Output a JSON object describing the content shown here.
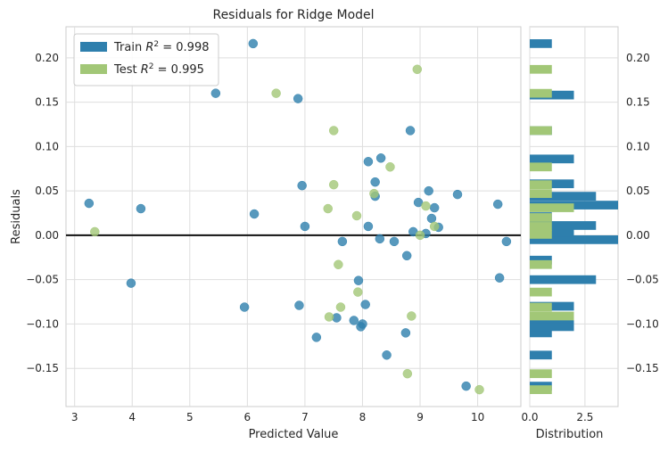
{
  "chart_data": [
    {
      "type": "scatter",
      "title": "Residuals for Ridge Model",
      "xlabel": "Predicted Value",
      "ylabel": "Residuals",
      "xlim": [
        2.85,
        10.75
      ],
      "ylim": [
        -0.193,
        0.235
      ],
      "xticks": [
        3,
        4,
        5,
        6,
        7,
        8,
        9,
        10
      ],
      "yticks": [
        -0.15,
        -0.1,
        -0.05,
        0.0,
        0.05,
        0.1,
        0.15,
        0.2
      ],
      "ytick_labels": [
        "−0.15",
        "−0.10",
        "−0.05",
        "0.00",
        "0.05",
        "0.10",
        "0.15",
        "0.20"
      ],
      "grid": true,
      "legend": "top-left",
      "zero_line": 0.0,
      "series": [
        {
          "name": "Train R² = 0.998",
          "legend_prefix": "Train ",
          "legend_suffix": "= 0.998",
          "color": "#2e7fad",
          "points": [
            [
              3.25,
              0.036
            ],
            [
              3.98,
              -0.054
            ],
            [
              4.15,
              0.03
            ],
            [
              5.45,
              0.16
            ],
            [
              5.95,
              -0.081
            ],
            [
              6.1,
              0.216
            ],
            [
              6.12,
              0.024
            ],
            [
              6.88,
              0.154
            ],
            [
              6.9,
              -0.079
            ],
            [
              6.95,
              0.056
            ],
            [
              7.0,
              0.01
            ],
            [
              7.2,
              -0.115
            ],
            [
              7.55,
              -0.093
            ],
            [
              7.65,
              -0.007
            ],
            [
              7.85,
              -0.096
            ],
            [
              7.93,
              -0.051
            ],
            [
              7.97,
              -0.103
            ],
            [
              8.0,
              -0.1
            ],
            [
              8.05,
              -0.078
            ],
            [
              8.1,
              0.01
            ],
            [
              8.1,
              0.083
            ],
            [
              8.22,
              0.06
            ],
            [
              8.22,
              0.044
            ],
            [
              8.3,
              -0.004
            ],
            [
              8.32,
              0.087
            ],
            [
              8.42,
              -0.135
            ],
            [
              8.55,
              -0.007
            ],
            [
              8.75,
              -0.11
            ],
            [
              8.77,
              -0.023
            ],
            [
              8.83,
              0.118
            ],
            [
              8.88,
              0.004
            ],
            [
              8.97,
              0.037
            ],
            [
              9.1,
              0.002
            ],
            [
              9.15,
              0.05
            ],
            [
              9.2,
              0.019
            ],
            [
              9.25,
              0.031
            ],
            [
              9.32,
              0.009
            ],
            [
              9.65,
              0.046
            ],
            [
              9.8,
              -0.17
            ],
            [
              10.35,
              0.035
            ],
            [
              10.38,
              -0.048
            ],
            [
              10.5,
              -0.007
            ]
          ]
        },
        {
          "name": "Test R² = 0.995",
          "legend_prefix": "Test ",
          "legend_suffix": "= 0.995",
          "color": "#a2c777",
          "points": [
            [
              3.35,
              0.004
            ],
            [
              6.5,
              0.16
            ],
            [
              7.4,
              0.03
            ],
            [
              7.42,
              -0.092
            ],
            [
              7.5,
              0.118
            ],
            [
              7.5,
              0.057
            ],
            [
              7.58,
              -0.033
            ],
            [
              7.62,
              -0.081
            ],
            [
              7.9,
              0.022
            ],
            [
              7.92,
              -0.064
            ],
            [
              8.2,
              0.047
            ],
            [
              8.48,
              0.077
            ],
            [
              8.78,
              -0.156
            ],
            [
              8.85,
              -0.091
            ],
            [
              8.95,
              0.187
            ],
            [
              9.0,
              0.0
            ],
            [
              9.1,
              0.033
            ],
            [
              9.25,
              0.01
            ],
            [
              10.03,
              -0.174
            ]
          ]
        }
      ]
    },
    {
      "type": "histogram",
      "orientation": "horizontal",
      "xlabel": "Distribution",
      "xlim": [
        0,
        4.0
      ],
      "xticks": [
        0.0,
        2.5
      ],
      "xtick_labels": [
        "0.0",
        "2.5"
      ],
      "ylim": [
        -0.193,
        0.235
      ],
      "yticks": [
        -0.15,
        -0.1,
        -0.05,
        0.0,
        0.05,
        0.1,
        0.15,
        0.2
      ],
      "ytick_labels": [
        "−0.15",
        "−0.10",
        "−0.05",
        "0.00",
        "0.05",
        "0.10",
        "0.15",
        "0.20"
      ],
      "bin_width": 0.0098,
      "series": [
        {
          "name": "Train",
          "color": "#2e7fad",
          "bins": [
            [
              -0.17,
              1
            ],
            [
              -0.135,
              1
            ],
            [
              -0.11,
              1
            ],
            [
              -0.103,
              2
            ],
            [
              -0.094,
              2
            ],
            [
              -0.08,
              2
            ],
            [
              -0.05,
              3
            ],
            [
              -0.028,
              1
            ],
            [
              -0.005,
              4
            ],
            [
              0.003,
              2
            ],
            [
              0.011,
              3
            ],
            [
              0.021,
              1
            ],
            [
              0.034,
              4
            ],
            [
              0.044,
              3
            ],
            [
              0.058,
              2
            ],
            [
              0.086,
              2
            ],
            [
              0.118,
              1
            ],
            [
              0.158,
              2
            ],
            [
              0.216,
              1
            ]
          ]
        },
        {
          "name": "Test",
          "color": "#a2c777",
          "bins": [
            [
              -0.174,
              1
            ],
            [
              -0.156,
              1
            ],
            [
              -0.091,
              2
            ],
            [
              -0.081,
              1
            ],
            [
              -0.064,
              1
            ],
            [
              -0.033,
              1
            ],
            [
              0.001,
              1
            ],
            [
              0.01,
              1
            ],
            [
              0.02,
              1
            ],
            [
              0.031,
              2
            ],
            [
              0.047,
              1
            ],
            [
              0.057,
              1
            ],
            [
              0.077,
              1
            ],
            [
              0.118,
              1
            ],
            [
              0.16,
              1
            ],
            [
              0.187,
              1
            ]
          ]
        }
      ]
    }
  ]
}
